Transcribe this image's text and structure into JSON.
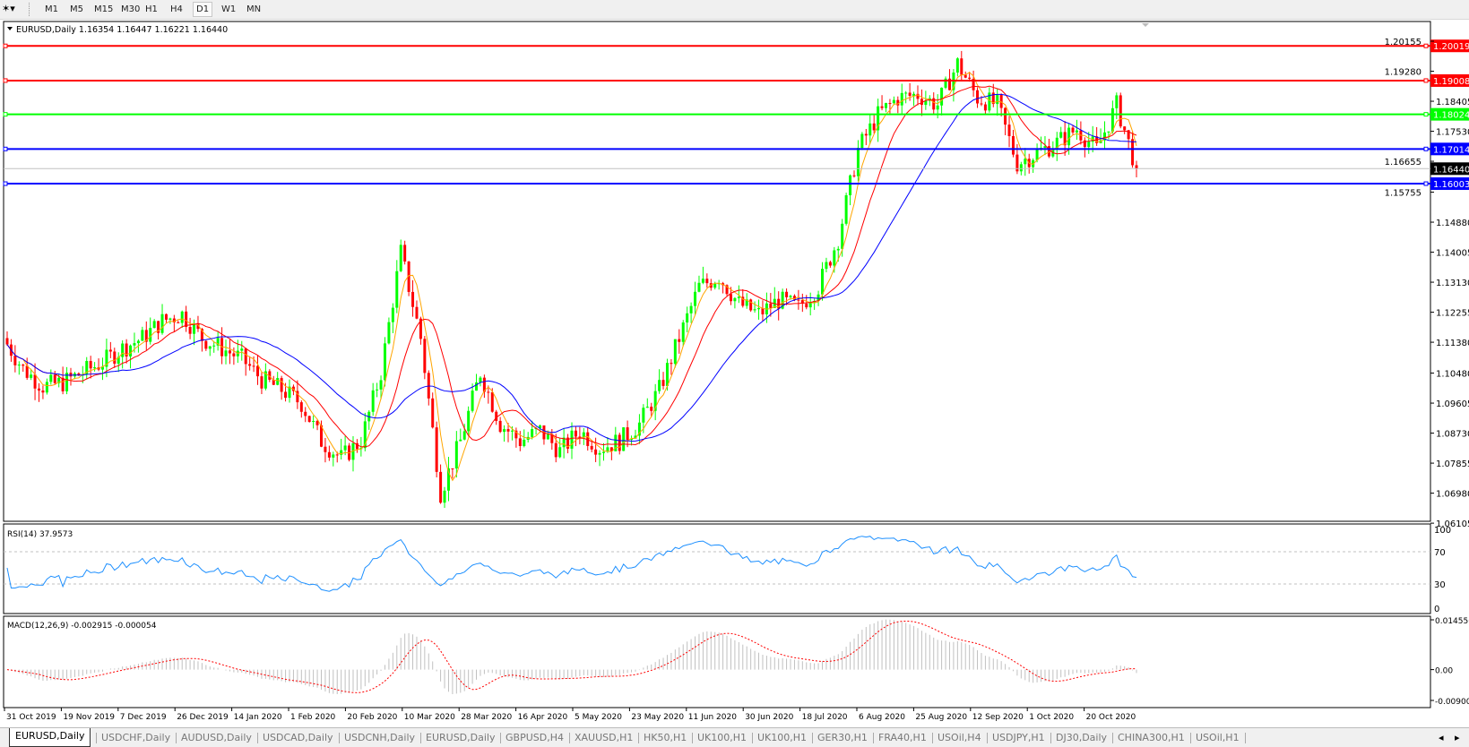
{
  "toolbar": {
    "tool_icon": "line-tool-icon",
    "timeframes": [
      {
        "label": "M1",
        "active": false
      },
      {
        "label": "M5",
        "active": false
      },
      {
        "label": "M15",
        "active": false
      },
      {
        "label": "M30",
        "active": false
      },
      {
        "label": "H1",
        "active": false
      },
      {
        "label": "H4",
        "active": false
      },
      {
        "label": "D1",
        "active": true
      },
      {
        "label": "W1",
        "active": false
      },
      {
        "label": "MN",
        "active": false
      }
    ]
  },
  "chart": {
    "header": "EURUSD,Daily  1.16354 1.16447 1.16221 1.16440",
    "symbol": "EURUSD",
    "timeframe": "Daily",
    "ohlc": {
      "open": "1.16354",
      "high": "1.16447",
      "low": "1.16221",
      "close": "1.16440"
    },
    "current_price": "1.16440",
    "colors": {
      "bull": "#00ff00",
      "bear": "#ff0000",
      "ma_fast": "#ffa500",
      "ma_mid": "#ff0000",
      "ma_slow": "#0000ff",
      "rsi": "#1e90ff",
      "macd_hist": "#c0c0c0",
      "macd_signal": "#ff0000"
    },
    "price_ticks": [
      "1.20155",
      "1.19280",
      "1.18405",
      "1.17530",
      "1.16655",
      "1.15755",
      "1.14880",
      "1.14005",
      "1.13130",
      "1.12255",
      "1.11380",
      "1.10480",
      "1.09605",
      "1.08730",
      "1.07855",
      "1.06980",
      "1.06105"
    ],
    "horizontal_lines": [
      {
        "price": "1.20019",
        "color": "#ff0000"
      },
      {
        "price": "1.19008",
        "color": "#ff0000"
      },
      {
        "price": "1.18024",
        "color": "#00ff00"
      },
      {
        "price": "1.17014",
        "color": "#0000ff"
      },
      {
        "price": "1.16003",
        "color": "#0000ff"
      }
    ],
    "date_labels": [
      "31 Oct 2019",
      "19 Nov 2019",
      "7 Dec 2019",
      "26 Dec 2019",
      "14 Jan 2020",
      "1 Feb 2020",
      "20 Feb 2020",
      "10 Mar 2020",
      "28 Mar 2020",
      "16 Apr 2020",
      "5 May 2020",
      "23 May 2020",
      "11 Jun 2020",
      "30 Jun 2020",
      "18 Jul 2020",
      "6 Aug 2020",
      "25 Aug 2020",
      "12 Sep 2020",
      "1 Oct 2020",
      "20 Oct 2020"
    ],
    "rsi": {
      "label": "RSI(14) 37.9573",
      "ticks": [
        "100",
        "70",
        "30",
        "0"
      ]
    },
    "macd": {
      "label": "MACD(12,26,9) -0.002915 -0.000054",
      "ticks": [
        "0.014556",
        "0.00",
        "-0.009001"
      ]
    }
  },
  "chart_data": {
    "type": "candlestick",
    "title": "EURUSD,Daily",
    "ylim": [
      1.0616,
      1.2073
    ],
    "x_range": [
      "31 Oct 2019",
      "30 Oct 2020"
    ],
    "weekly_closes": [
      1.115,
      1.106,
      1.101,
      1.102,
      1.105,
      1.108,
      1.112,
      1.115,
      1.12,
      1.122,
      1.115,
      1.112,
      1.109,
      1.103,
      1.1,
      1.096,
      1.085,
      1.08,
      1.085,
      1.105,
      1.14,
      1.115,
      1.07,
      1.085,
      1.105,
      1.09,
      1.085,
      1.088,
      1.082,
      1.088,
      1.083,
      1.085,
      1.09,
      1.1,
      1.115,
      1.13,
      1.133,
      1.125,
      1.122,
      1.126,
      1.124,
      1.13,
      1.144,
      1.17,
      1.18,
      1.185,
      1.186,
      1.183,
      1.195,
      1.185,
      1.183,
      1.166,
      1.169,
      1.172,
      1.176,
      1.17,
      1.183,
      1.1644
    ]
  },
  "tabs": [
    {
      "label": "EURUSD,Daily",
      "active": true
    },
    {
      "label": "USDCHF,Daily"
    },
    {
      "label": "AUDUSD,Daily"
    },
    {
      "label": "USDCAD,Daily"
    },
    {
      "label": "USDCNH,Daily"
    },
    {
      "label": "EURUSD,Daily"
    },
    {
      "label": "GBPUSD,H4"
    },
    {
      "label": "XAUUSD,H1"
    },
    {
      "label": "HK50,H1"
    },
    {
      "label": "UK100,H1"
    },
    {
      "label": "UK100,H1"
    },
    {
      "label": "GER30,H1"
    },
    {
      "label": "FRA40,H1"
    },
    {
      "label": "USOil,H4"
    },
    {
      "label": "USDJPY,H1"
    },
    {
      "label": "DJ30,Daily"
    },
    {
      "label": "CHINA300,H1"
    },
    {
      "label": "USOil,H1"
    }
  ]
}
